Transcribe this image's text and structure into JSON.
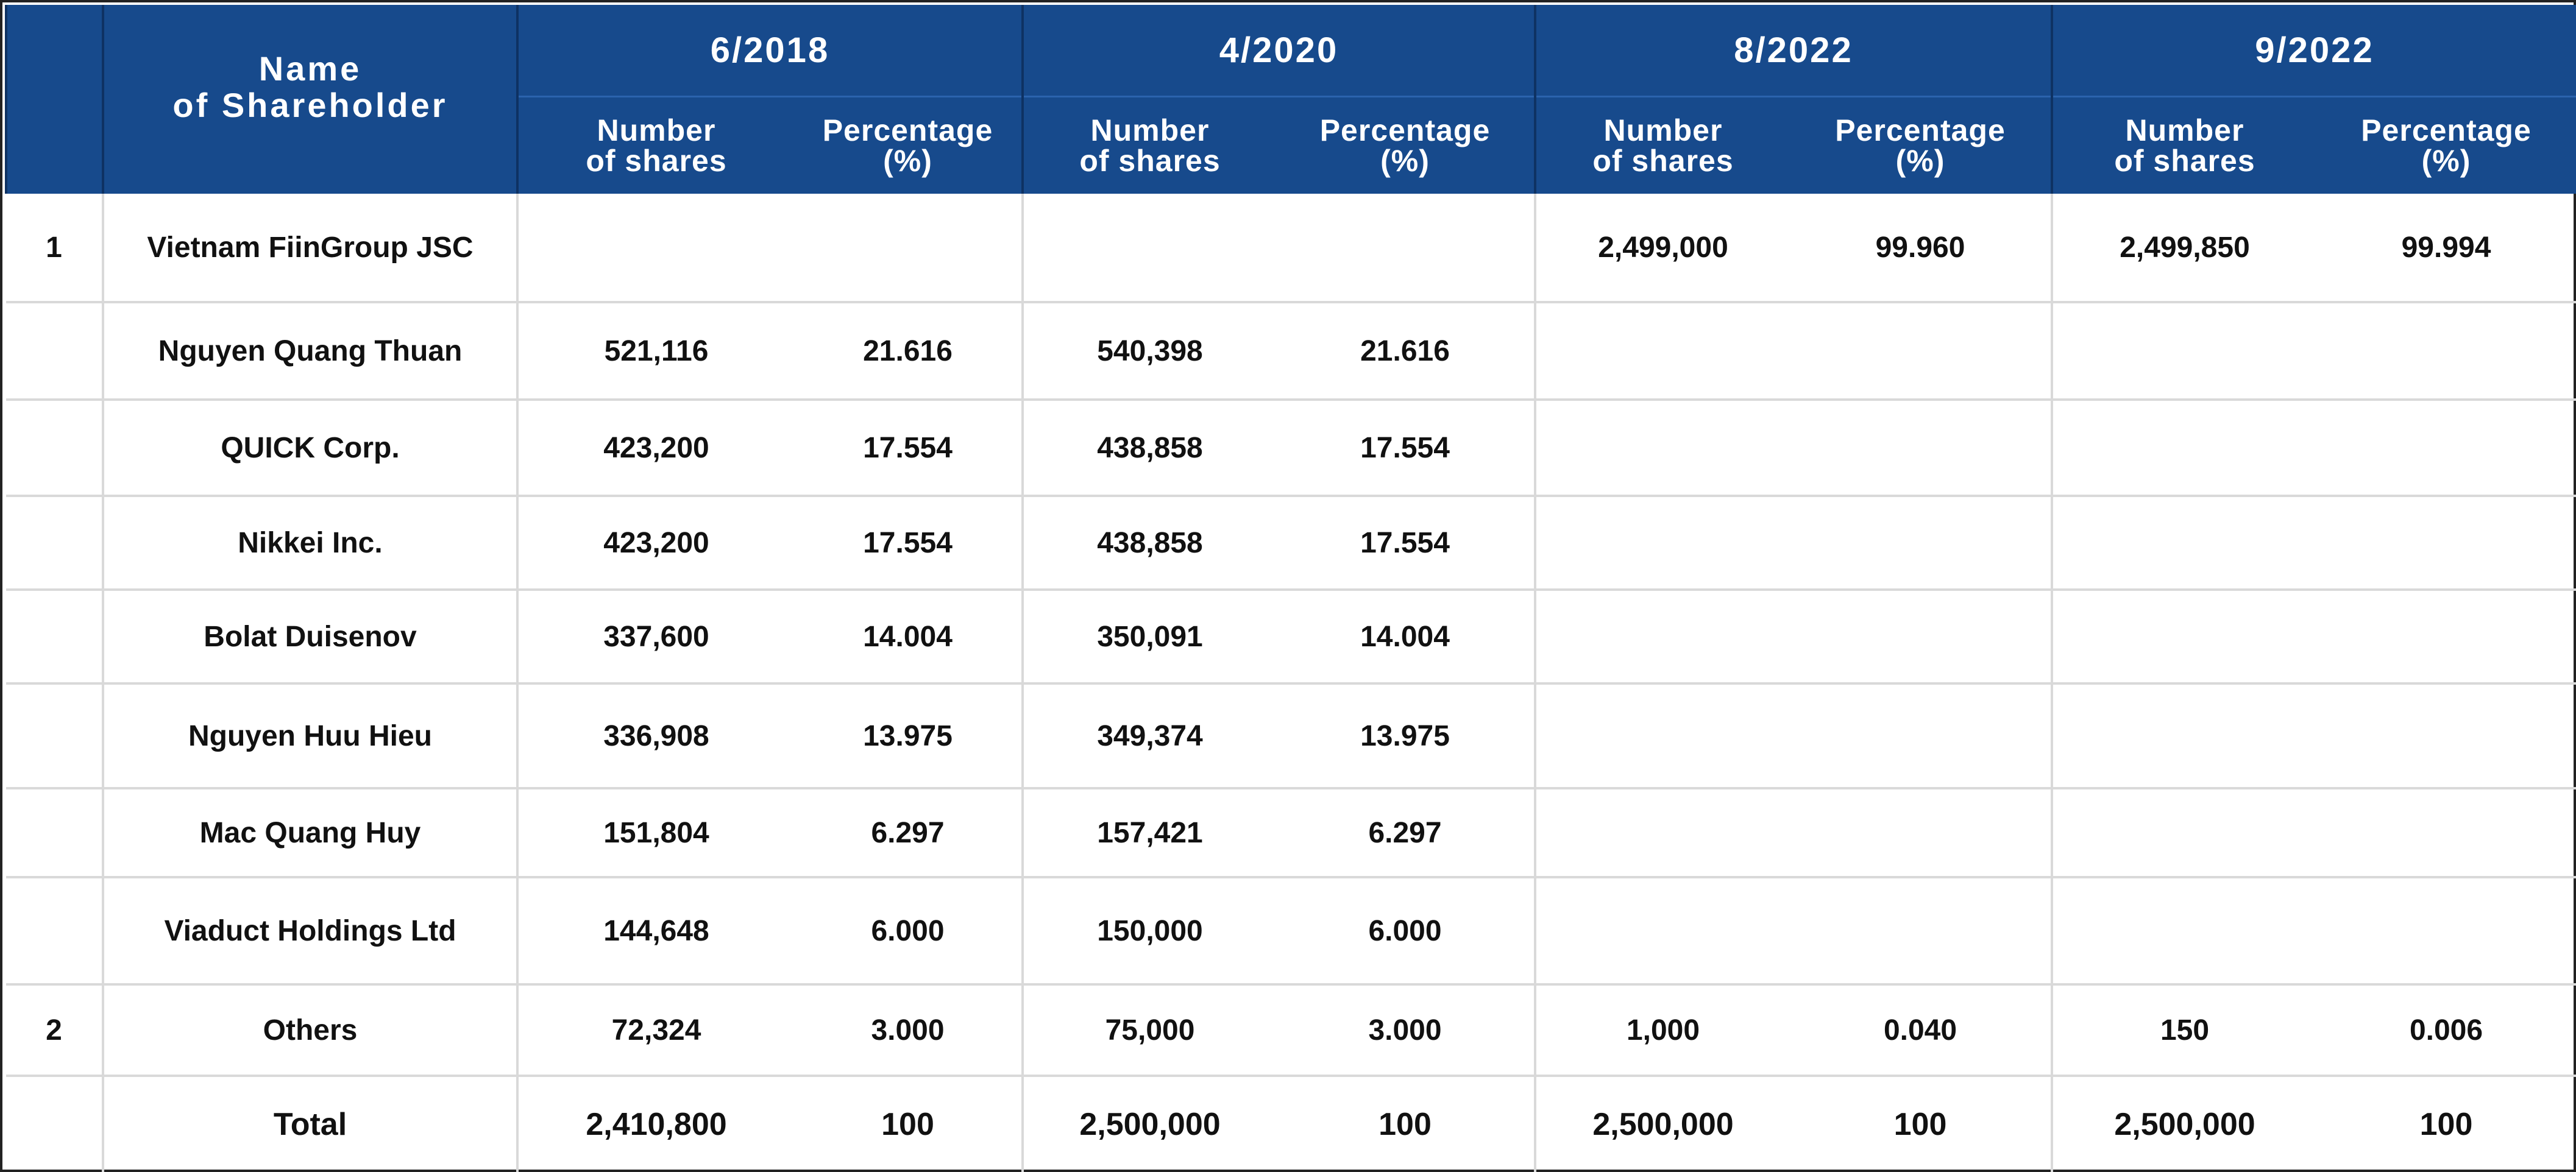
{
  "table": {
    "header": {
      "name_col_line1": "Name",
      "name_col_line2": "of Shareholder",
      "periods": [
        "6/2018",
        "4/2020",
        "8/2022",
        "9/2022"
      ],
      "shares_label_line1": "Number",
      "shares_label_line2": "of shares",
      "pct_label_line1": "Percentage",
      "pct_label_line2": "(%)"
    },
    "rows": [
      {
        "no": "1",
        "name": "Vietnam FiinGroup JSC",
        "values": [
          "",
          "",
          "",
          "",
          "2,499,000",
          "99.960",
          "2,499,850",
          "99.994"
        ]
      },
      {
        "no": "",
        "name": "Nguyen Quang Thuan",
        "values": [
          "521,116",
          "21.616",
          "540,398",
          "21.616",
          "",
          "",
          "",
          ""
        ]
      },
      {
        "no": "",
        "name": "QUICK Corp.",
        "values": [
          "423,200",
          "17.554",
          "438,858",
          "17.554",
          "",
          "",
          "",
          ""
        ]
      },
      {
        "no": "",
        "name": "Nikkei Inc.",
        "values": [
          "423,200",
          "17.554",
          "438,858",
          "17.554",
          "",
          "",
          "",
          ""
        ]
      },
      {
        "no": "",
        "name": "Bolat Duisenov",
        "values": [
          "337,600",
          "14.004",
          "350,091",
          "14.004",
          "",
          "",
          "",
          ""
        ]
      },
      {
        "no": "",
        "name": "Nguyen Huu Hieu",
        "values": [
          "336,908",
          "13.975",
          "349,374",
          "13.975",
          "",
          "",
          "",
          ""
        ]
      },
      {
        "no": "",
        "name": "Mac Quang Huy",
        "values": [
          "151,804",
          "6.297",
          "157,421",
          "6.297",
          "",
          "",
          "",
          ""
        ]
      },
      {
        "no": "",
        "name": "Viaduct Holdings Ltd",
        "values": [
          "144,648",
          "6.000",
          "150,000",
          "6.000",
          "",
          "",
          "",
          ""
        ]
      },
      {
        "no": "2",
        "name": "Others",
        "values": [
          "72,324",
          "3.000",
          "75,000",
          "3.000",
          "1,000",
          "0.040",
          "150",
          "0.006"
        ]
      },
      {
        "no": "",
        "name": "Total",
        "values": [
          "2,410,800",
          "100",
          "2,500,000",
          "100",
          "2,500,000",
          "100",
          "2,500,000",
          "100"
        ]
      }
    ]
  },
  "colors": {
    "header_bg": "#174a8c",
    "header_text": "#ffffff",
    "grid_line": "#d9d9d9",
    "body_text": "#111111"
  }
}
